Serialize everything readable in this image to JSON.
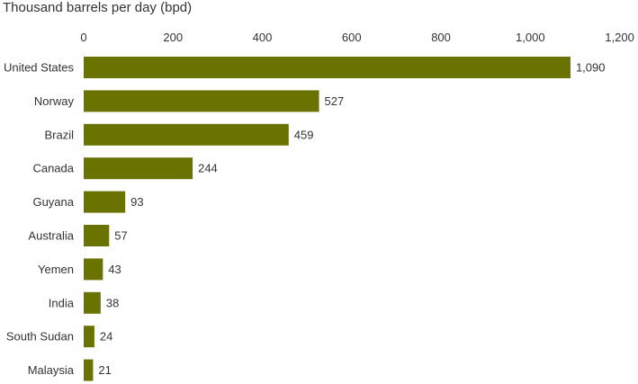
{
  "chart_data": {
    "type": "bar",
    "orientation": "horizontal",
    "title": "Thousand barrels per day (bpd)",
    "xlim": [
      0,
      1200
    ],
    "xticks": [
      0,
      200,
      400,
      600,
      800,
      1000,
      1200
    ],
    "xtick_labels": [
      "0",
      "200",
      "400",
      "600",
      "800",
      "1,000",
      "1,200"
    ],
    "xaxis_position": "top",
    "grid": false,
    "categories": [
      "United States",
      "Norway",
      "Brazil",
      "Canada",
      "Guyana",
      "Australia",
      "Yemen",
      "India",
      "South Sudan",
      "Malaysia"
    ],
    "values": [
      1090,
      527,
      459,
      244,
      93,
      57,
      43,
      38,
      24,
      21
    ],
    "value_labels": [
      "1,090",
      "527",
      "459",
      "244",
      "93",
      "57",
      "43",
      "38",
      "24",
      "21"
    ],
    "bar_color": "#6b7300"
  }
}
